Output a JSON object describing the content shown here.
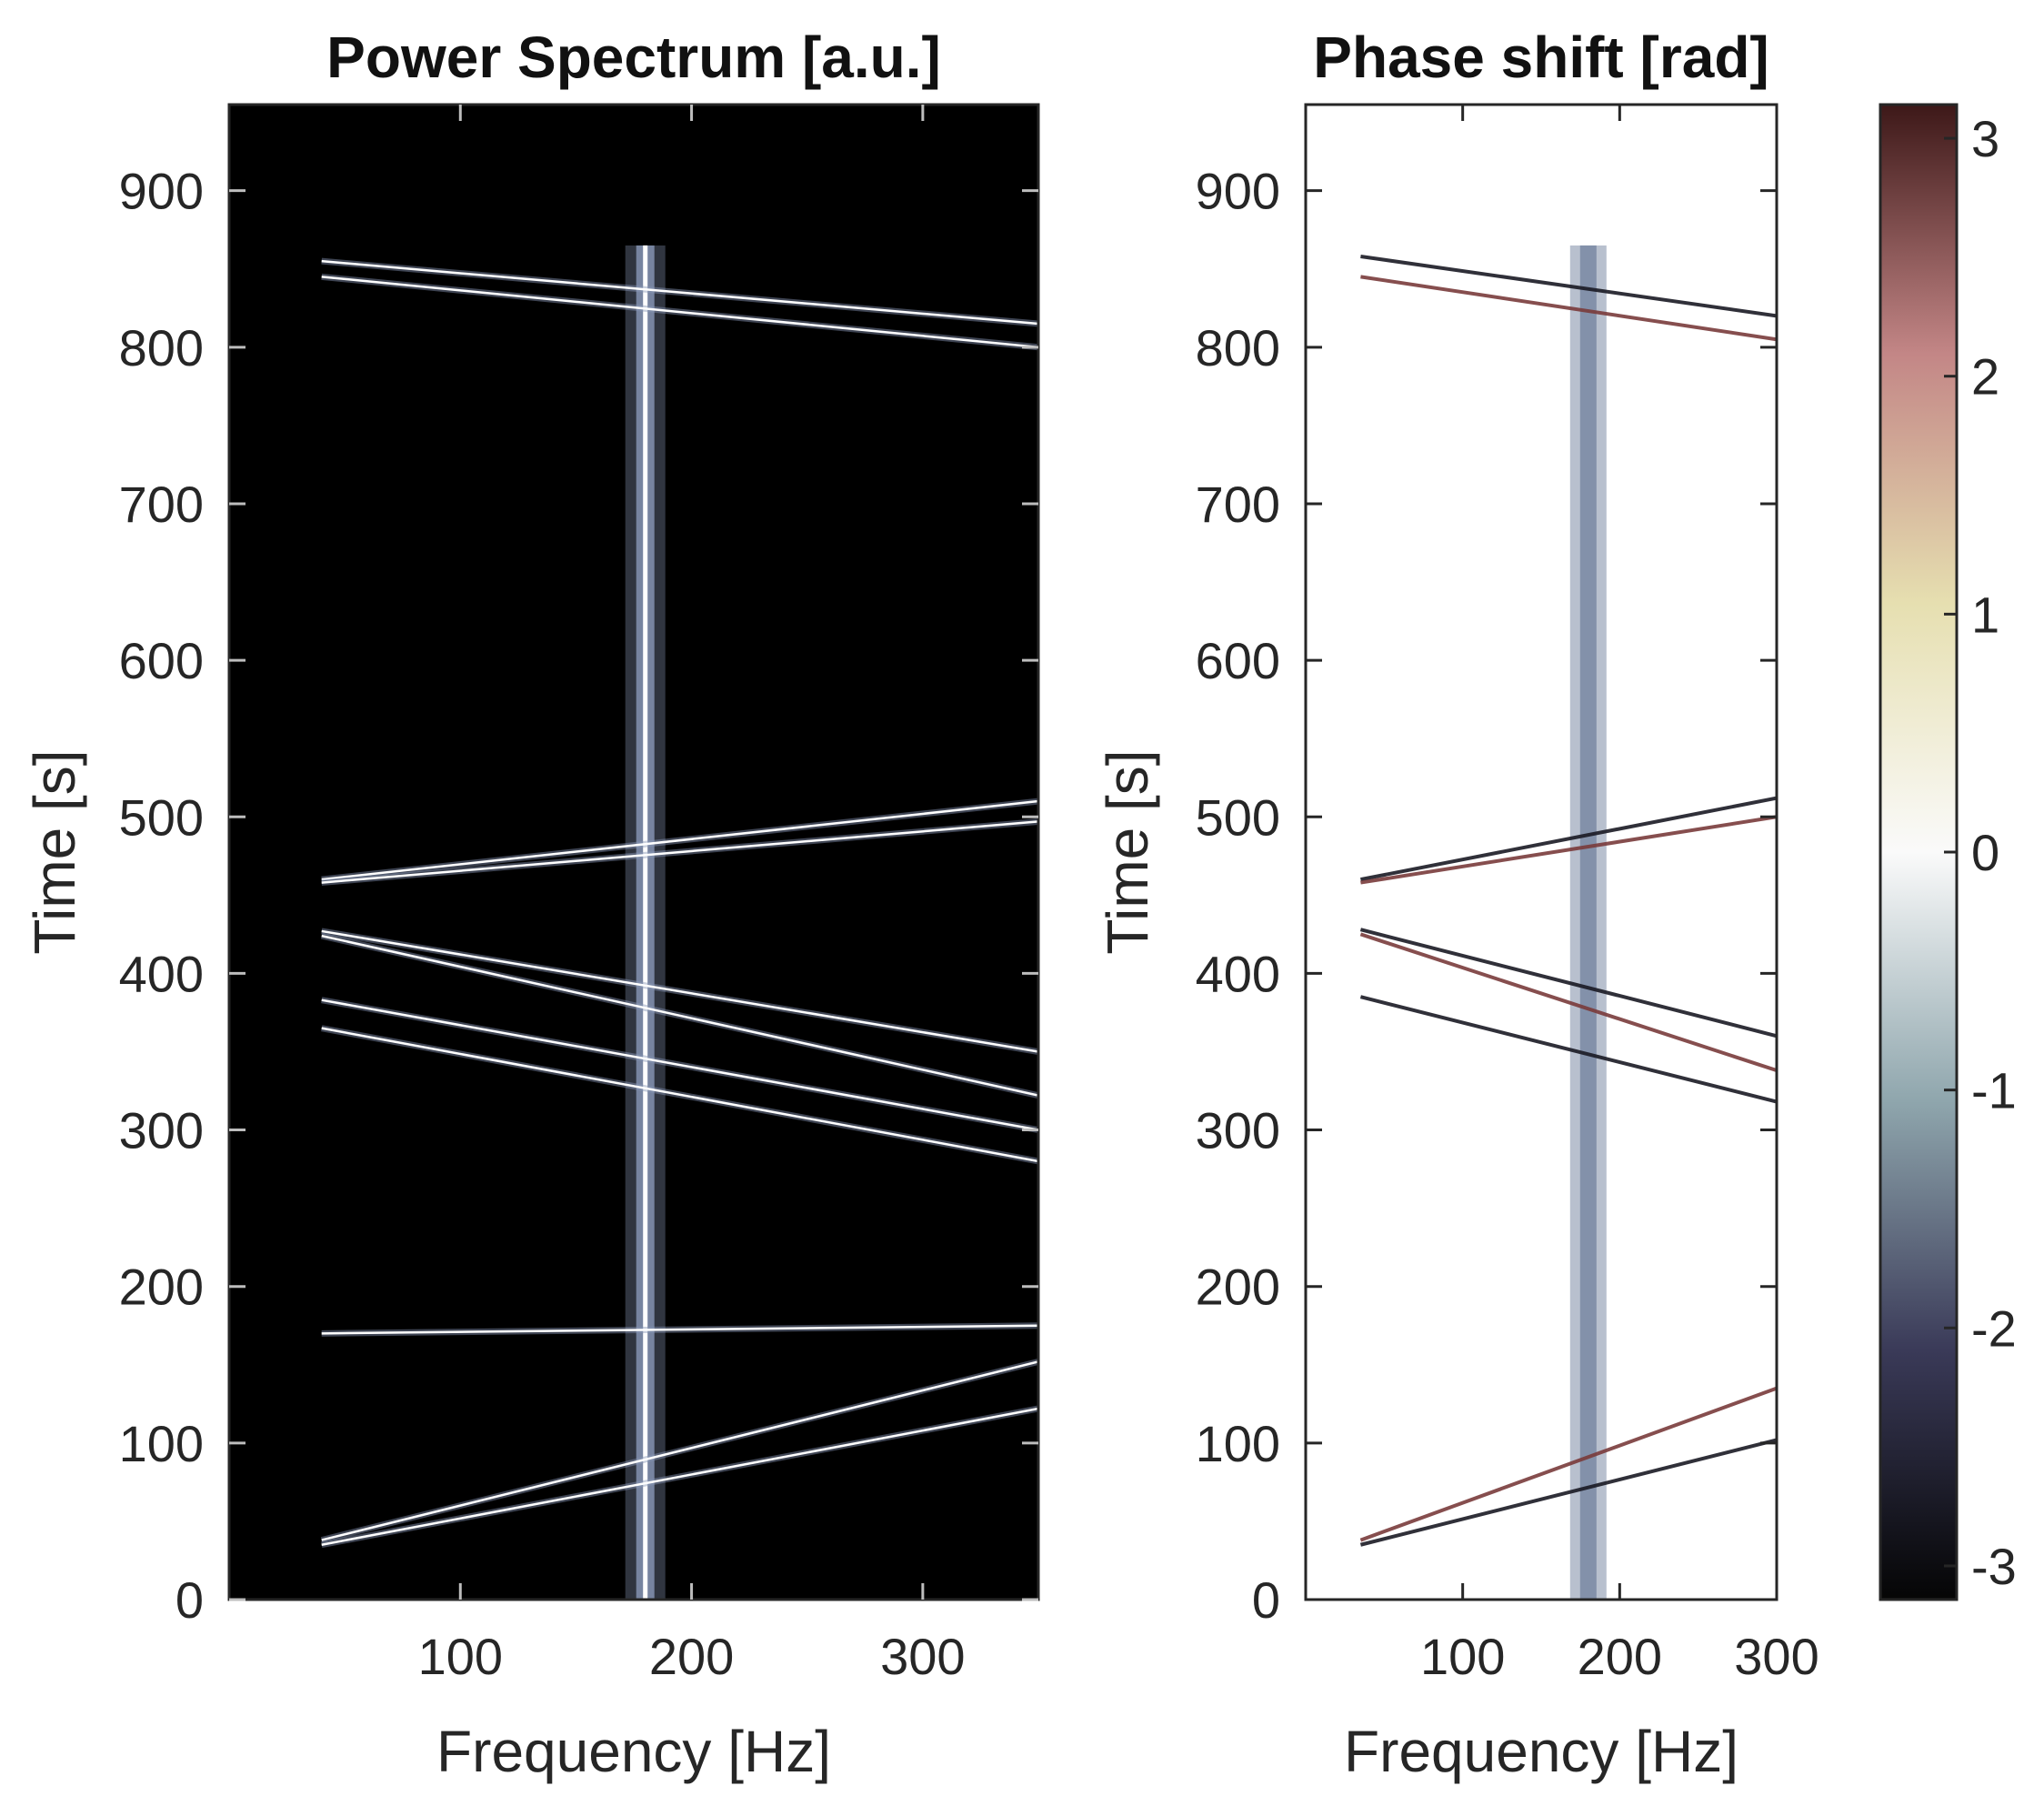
{
  "chart_data": [
    {
      "type": "heatmap",
      "title": "Power Spectrum [a.u.]",
      "xlabel": "Frequency [Hz]",
      "ylabel": "Time [s]",
      "xlim": [
        0,
        350
      ],
      "ylim": [
        0,
        955
      ],
      "xticks": [
        100,
        200,
        300
      ],
      "yticks": [
        0,
        100,
        200,
        300,
        400,
        500,
        600,
        700,
        800,
        900
      ],
      "background": "#000000",
      "colors": {
        "signal": "#ffffff",
        "halo": "#8a98b8"
      },
      "features": {
        "carrier": {
          "frequency": 180,
          "t_start": 0,
          "t_end": 865
        },
        "chirps": [
          {
            "f0": 40,
            "t0": 855,
            "f1": 350,
            "t1": 815
          },
          {
            "f0": 40,
            "t0": 845,
            "f1": 350,
            "t1": 800
          },
          {
            "f0": 40,
            "t0": 460,
            "f1": 350,
            "t1": 510
          },
          {
            "f0": 40,
            "t0": 458,
            "f1": 350,
            "t1": 497
          },
          {
            "f0": 40,
            "t0": 427,
            "f1": 350,
            "t1": 350
          },
          {
            "f0": 40,
            "t0": 424,
            "f1": 350,
            "t1": 322
          },
          {
            "f0": 40,
            "t0": 383,
            "f1": 350,
            "t1": 300
          },
          {
            "f0": 40,
            "t0": 365,
            "f1": 350,
            "t1": 280
          },
          {
            "f0": 40,
            "t0": 38,
            "f1": 350,
            "t1": 152
          },
          {
            "f0": 40,
            "t0": 35,
            "f1": 350,
            "t1": 122
          },
          {
            "f0": 40,
            "t0": 170,
            "f1": 350,
            "t1": 175
          }
        ]
      }
    },
    {
      "type": "heatmap",
      "title": "Phase shift [rad]",
      "xlabel": "Frequency [Hz]",
      "ylabel": "Time [s]",
      "xlim": [
        0,
        300
      ],
      "ylim": [
        0,
        955
      ],
      "xticks": [
        100,
        200,
        300
      ],
      "yticks": [
        0,
        100,
        200,
        300,
        400,
        500,
        600,
        700,
        800,
        900
      ],
      "background": "#ffffff",
      "colors": {
        "band": "#7d8ca6",
        "negative": "#1a1a24",
        "positive": "#7a3b3b"
      },
      "features": {
        "carrier": {
          "frequency": 180,
          "t_start": 0,
          "t_end": 865
        },
        "chirps": [
          {
            "f0": 35,
            "t0": 858,
            "f1": 300,
            "t1": 820
          },
          {
            "f0": 35,
            "t0": 845,
            "f1": 300,
            "t1": 805
          },
          {
            "f0": 35,
            "t0": 460,
            "f1": 300,
            "t1": 512
          },
          {
            "f0": 35,
            "t0": 458,
            "f1": 300,
            "t1": 500
          },
          {
            "f0": 35,
            "t0": 428,
            "f1": 300,
            "t1": 360
          },
          {
            "f0": 35,
            "t0": 425,
            "f1": 300,
            "t1": 338
          },
          {
            "f0": 35,
            "t0": 385,
            "f1": 300,
            "t1": 318
          },
          {
            "f0": 35,
            "t0": 38,
            "f1": 300,
            "t1": 135
          },
          {
            "f0": 35,
            "t0": 35,
            "f1": 300,
            "t1": 102
          }
        ]
      }
    }
  ],
  "colorbar": {
    "range": [
      -3.14159,
      3.14159
    ],
    "ticks": [
      "3",
      "2",
      "1",
      "0",
      "-1",
      "-2",
      "-3"
    ],
    "colors": [
      "#050505",
      "#3a3a58",
      "#8fa6ad",
      "#fafafa",
      "#e6dfb0",
      "#c38686",
      "#3d1818"
    ]
  }
}
